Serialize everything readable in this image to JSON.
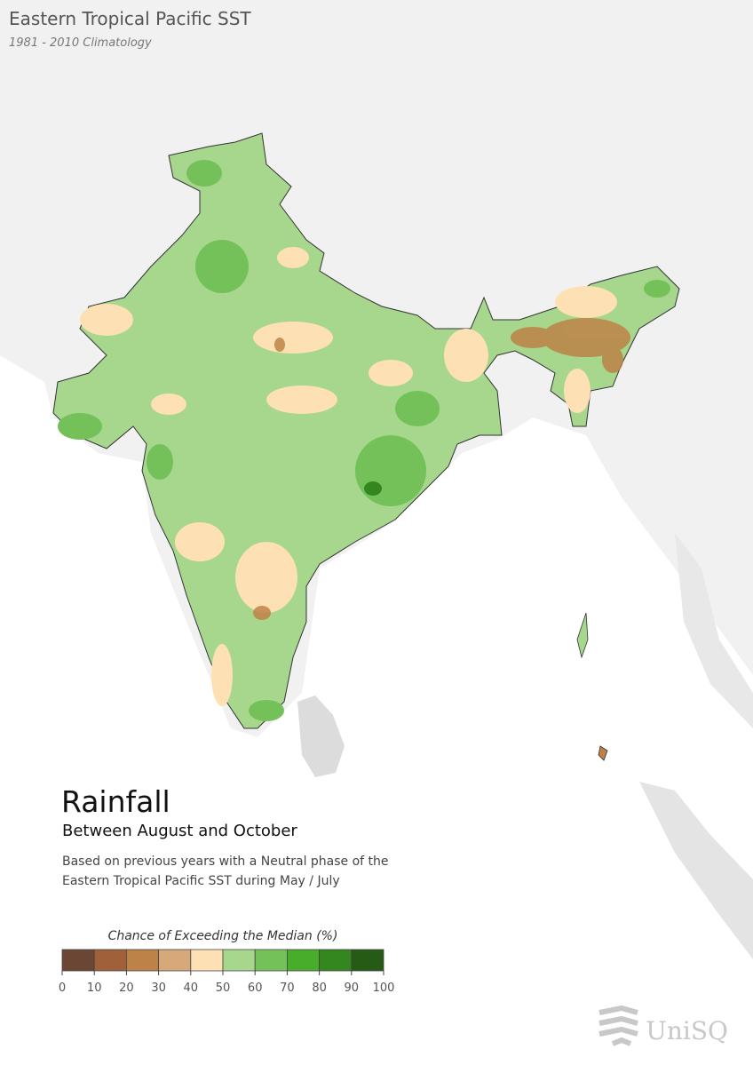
{
  "header": {
    "title": "Eastern Tropical Pacific SST",
    "subtitle": "1981 - 2010 Climatology"
  },
  "panel": {
    "title": "Rainfall",
    "subtitle": "Between August and October",
    "description": [
      "Based on previous years with a Neutral phase of the",
      "Eastern Tropical Pacific SST during May / July"
    ]
  },
  "legend": {
    "title": "Chance of Exceeding the Median (%)",
    "ticks": [
      0,
      10,
      20,
      30,
      40,
      50,
      60,
      70,
      80,
      90,
      100
    ],
    "colors": [
      "#6b4634",
      "#a0603a",
      "#bd8247",
      "#d7a97a",
      "#fde0b3",
      "#a6d78c",
      "#74c15a",
      "#48ad2a",
      "#34871e",
      "#255b15"
    ]
  },
  "logo": "UniSQ"
}
